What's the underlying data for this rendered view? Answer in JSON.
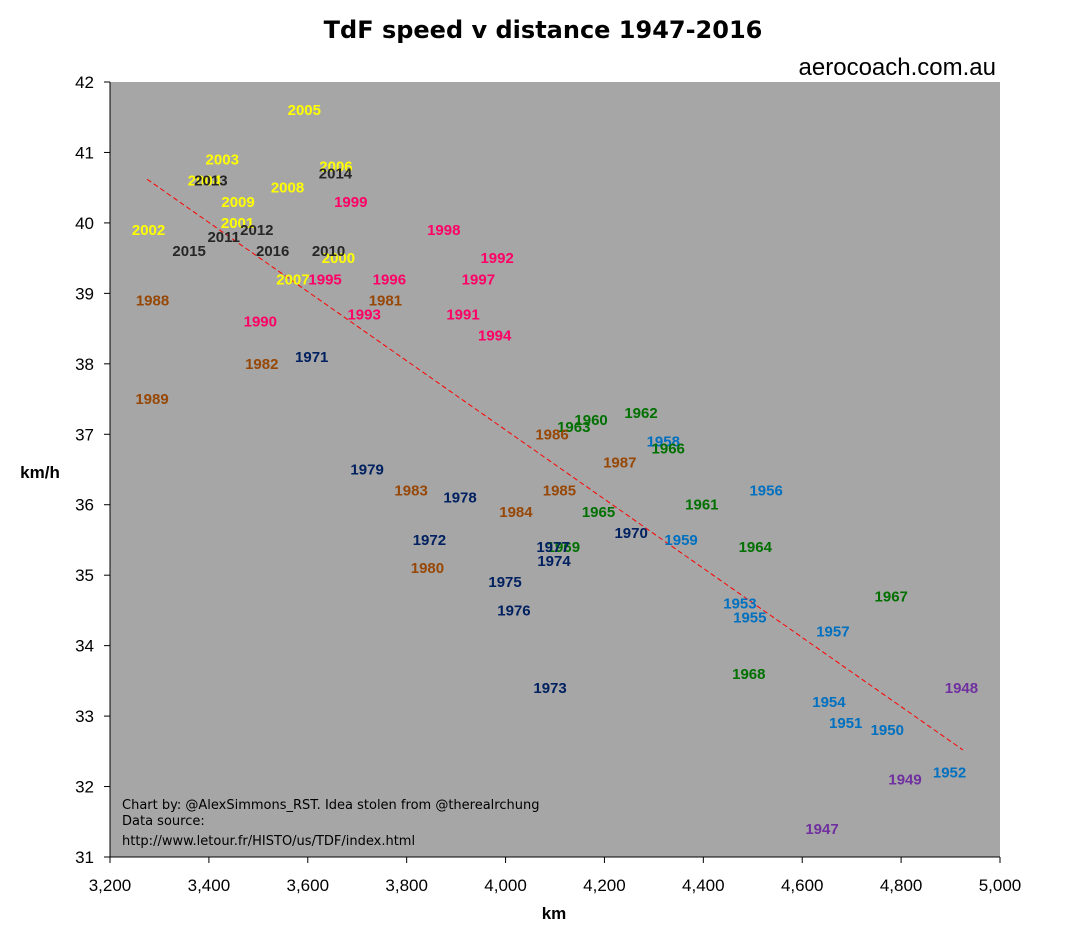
{
  "chart_data": {
    "type": "scatter",
    "title": "TdF speed v distance 1947-2016",
    "watermark": "aerocoach.com.au",
    "xlabel": "km",
    "ylabel": "km/h",
    "xlim": [
      3200,
      5000
    ],
    "ylim": [
      31,
      42
    ],
    "x_ticks": [
      "3,200",
      "3,400",
      "3,600",
      "3,800",
      "4,000",
      "4,200",
      "4,400",
      "4,600",
      "4,800",
      "5,000"
    ],
    "y_ticks": [
      "31",
      "32",
      "33",
      "34",
      "35",
      "36",
      "37",
      "38",
      "39",
      "40",
      "41",
      "42"
    ],
    "x_tick_values": [
      3200,
      3400,
      3600,
      3800,
      4000,
      4200,
      4400,
      4600,
      4800,
      5000
    ],
    "y_tick_values": [
      31,
      32,
      33,
      34,
      35,
      36,
      37,
      38,
      39,
      40,
      41,
      42
    ],
    "grid": false,
    "background": "#a6a6a6",
    "trendline": {
      "x": [
        3275,
        4925
      ],
      "y": [
        40.62,
        32.52
      ],
      "color": "#ff0000",
      "style": "dashed"
    },
    "era_colors": {
      "1940s": "#7030a0",
      "1950s": "#0070c0",
      "1960s": "#007000",
      "1970s": "#002060",
      "1980s": "#974706",
      "1990s": "#ff0066",
      "2000s": "#ffff00",
      "2010s": "#262626"
    },
    "points": [
      {
        "label": "1947",
        "x": 4640,
        "y": 31.4,
        "era": "1940s"
      },
      {
        "label": "1948",
        "x": 4922,
        "y": 33.4,
        "era": "1940s"
      },
      {
        "label": "1949",
        "x": 4808,
        "y": 32.1,
        "era": "1940s"
      },
      {
        "label": "1950",
        "x": 4772,
        "y": 32.8,
        "era": "1950s"
      },
      {
        "label": "1951",
        "x": 4688,
        "y": 32.9,
        "era": "1950s"
      },
      {
        "label": "1952",
        "x": 4898,
        "y": 32.2,
        "era": "1950s"
      },
      {
        "label": "1953",
        "x": 4474,
        "y": 34.6,
        "era": "1950s"
      },
      {
        "label": "1954",
        "x": 4654,
        "y": 33.2,
        "era": "1950s"
      },
      {
        "label": "1955",
        "x": 4494,
        "y": 34.4,
        "era": "1950s"
      },
      {
        "label": "1956",
        "x": 4527,
        "y": 36.2,
        "era": "1950s"
      },
      {
        "label": "1957",
        "x": 4662,
        "y": 34.2,
        "era": "1950s"
      },
      {
        "label": "1958",
        "x": 4319,
        "y": 36.9,
        "era": "1950s"
      },
      {
        "label": "1959",
        "x": 4355,
        "y": 35.5,
        "era": "1950s"
      },
      {
        "label": "1960",
        "x": 4173,
        "y": 37.2,
        "era": "1960s"
      },
      {
        "label": "1961",
        "x": 4397,
        "y": 36.0,
        "era": "1960s"
      },
      {
        "label": "1962",
        "x": 4274,
        "y": 37.3,
        "era": "1960s"
      },
      {
        "label": "1963",
        "x": 4138,
        "y": 37.1,
        "era": "1960s"
      },
      {
        "label": "1964",
        "x": 4505,
        "y": 35.4,
        "era": "1960s"
      },
      {
        "label": "1965",
        "x": 4188,
        "y": 35.9,
        "era": "1960s"
      },
      {
        "label": "1966",
        "x": 4329,
        "y": 36.8,
        "era": "1960s"
      },
      {
        "label": "1967",
        "x": 4780,
        "y": 34.7,
        "era": "1960s"
      },
      {
        "label": "1968",
        "x": 4492,
        "y": 33.6,
        "era": "1960s"
      },
      {
        "label": "1969",
        "x": 4117,
        "y": 35.4,
        "era": "1960s"
      },
      {
        "label": "1970",
        "x": 4254,
        "y": 35.6,
        "era": "1970s"
      },
      {
        "label": "1971",
        "x": 3608,
        "y": 38.1,
        "era": "1970s"
      },
      {
        "label": "1972",
        "x": 3846,
        "y": 35.5,
        "era": "1970s"
      },
      {
        "label": "1973",
        "x": 4090,
        "y": 33.4,
        "era": "1970s"
      },
      {
        "label": "1974",
        "x": 4098,
        "y": 35.2,
        "era": "1970s"
      },
      {
        "label": "1975",
        "x": 3999,
        "y": 34.9,
        "era": "1970s"
      },
      {
        "label": "1976",
        "x": 4017,
        "y": 34.5,
        "era": "1970s"
      },
      {
        "label": "1977",
        "x": 4096,
        "y": 35.4,
        "era": "1970s"
      },
      {
        "label": "1978",
        "x": 3908,
        "y": 36.1,
        "era": "1970s"
      },
      {
        "label": "1979",
        "x": 3720,
        "y": 36.5,
        "era": "1970s"
      },
      {
        "label": "1980",
        "x": 3842,
        "y": 35.1,
        "era": "1980s"
      },
      {
        "label": "1981",
        "x": 3757,
        "y": 38.9,
        "era": "1980s"
      },
      {
        "label": "1982",
        "x": 3507,
        "y": 38.0,
        "era": "1980s"
      },
      {
        "label": "1983",
        "x": 3809,
        "y": 36.2,
        "era": "1980s"
      },
      {
        "label": "1984",
        "x": 4021,
        "y": 35.9,
        "era": "1980s"
      },
      {
        "label": "1985",
        "x": 4109,
        "y": 36.2,
        "era": "1980s"
      },
      {
        "label": "1986",
        "x": 4094,
        "y": 37.0,
        "era": "1980s"
      },
      {
        "label": "1987",
        "x": 4231,
        "y": 36.6,
        "era": "1980s"
      },
      {
        "label": "1988",
        "x": 3286,
        "y": 38.9,
        "era": "1980s"
      },
      {
        "label": "1989",
        "x": 3285,
        "y": 37.5,
        "era": "1980s"
      },
      {
        "label": "1990",
        "x": 3504,
        "y": 38.6,
        "era": "1990s"
      },
      {
        "label": "1991",
        "x": 3914,
        "y": 38.7,
        "era": "1990s"
      },
      {
        "label": "1992",
        "x": 3983,
        "y": 39.5,
        "era": "1990s"
      },
      {
        "label": "1993",
        "x": 3714,
        "y": 38.7,
        "era": "1990s"
      },
      {
        "label": "1994",
        "x": 3978,
        "y": 38.4,
        "era": "1990s"
      },
      {
        "label": "1995",
        "x": 3635,
        "y": 39.2,
        "era": "1990s"
      },
      {
        "label": "1996",
        "x": 3765,
        "y": 39.2,
        "era": "1990s"
      },
      {
        "label": "1997",
        "x": 3945,
        "y": 39.2,
        "era": "1990s"
      },
      {
        "label": "1998",
        "x": 3875,
        "y": 39.9,
        "era": "1990s"
      },
      {
        "label": "1999",
        "x": 3687,
        "y": 40.3,
        "era": "1990s"
      },
      {
        "label": "2000",
        "x": 3662,
        "y": 39.5,
        "era": "2000s"
      },
      {
        "label": "2001",
        "x": 3458,
        "y": 40.0,
        "era": "2000s"
      },
      {
        "label": "2002",
        "x": 3278,
        "y": 39.9,
        "era": "2000s"
      },
      {
        "label": "2003",
        "x": 3427,
        "y": 40.9,
        "era": "2000s"
      },
      {
        "label": "2004",
        "x": 3391,
        "y": 40.6,
        "era": "2000s"
      },
      {
        "label": "2005",
        "x": 3593,
        "y": 41.6,
        "era": "2000s"
      },
      {
        "label": "2006",
        "x": 3657,
        "y": 40.8,
        "era": "2000s"
      },
      {
        "label": "2007",
        "x": 3570,
        "y": 39.2,
        "era": "2000s"
      },
      {
        "label": "2008",
        "x": 3559,
        "y": 40.5,
        "era": "2000s"
      },
      {
        "label": "2009",
        "x": 3459,
        "y": 40.3,
        "era": "2000s"
      },
      {
        "label": "2010",
        "x": 3642,
        "y": 39.6,
        "era": "2010s"
      },
      {
        "label": "2011",
        "x": 3430,
        "y": 39.8,
        "era": "2010s"
      },
      {
        "label": "2012",
        "x": 3497,
        "y": 39.9,
        "era": "2010s"
      },
      {
        "label": "2013",
        "x": 3404,
        "y": 40.6,
        "era": "2010s"
      },
      {
        "label": "2014",
        "x": 3656,
        "y": 40.7,
        "era": "2010s"
      },
      {
        "label": "2015",
        "x": 3360,
        "y": 39.6,
        "era": "2010s"
      },
      {
        "label": "2016",
        "x": 3529,
        "y": 39.6,
        "era": "2010s"
      }
    ],
    "notes": [
      "Chart by: @AlexSimmons_RST. Idea stolen from @therealrchung",
      "Data source:",
      "http://www.letour.fr/HISTO/us/TDF/index.html"
    ]
  }
}
